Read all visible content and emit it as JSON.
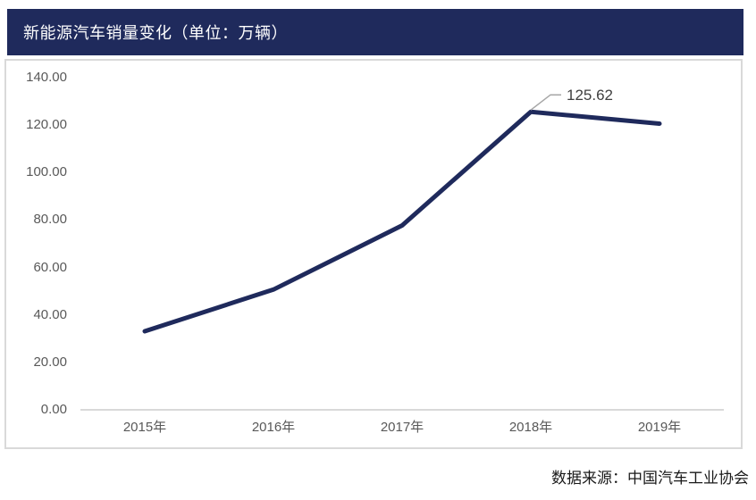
{
  "header": {
    "title": "新能源汽车销量变化（单位：万辆）"
  },
  "footer": {
    "source": "数据来源：中国汽车工业协会"
  },
  "colors": {
    "title_bar_bg": "#1F2A5C",
    "line": "#1F2A5C",
    "axis_line": "#D9D9D9",
    "tick_label": "#595959",
    "leader_line": "#A6A6A6",
    "annotation_text": "#404040"
  },
  "chart_data": {
    "type": "line",
    "title": "新能源汽车销量变化（单位：万辆）",
    "categories": [
      "2015年",
      "2016年",
      "2017年",
      "2018年",
      "2019年"
    ],
    "series": [
      {
        "name": "新能源汽车销量",
        "values": [
          33.11,
          50.7,
          77.7,
          125.62,
          120.6
        ]
      }
    ],
    "ylim": [
      0,
      140
    ],
    "yticks": [
      0,
      20,
      40,
      60,
      80,
      100,
      120,
      140
    ],
    "ytick_labels": [
      "0.00",
      "20.00",
      "40.00",
      "60.00",
      "80.00",
      "100.00",
      "120.00",
      "140.00"
    ],
    "grid": false,
    "legend": "none",
    "annotation": {
      "point_index": 3,
      "label": "125.62"
    },
    "source": "数据来源：中国汽车工业协会"
  }
}
